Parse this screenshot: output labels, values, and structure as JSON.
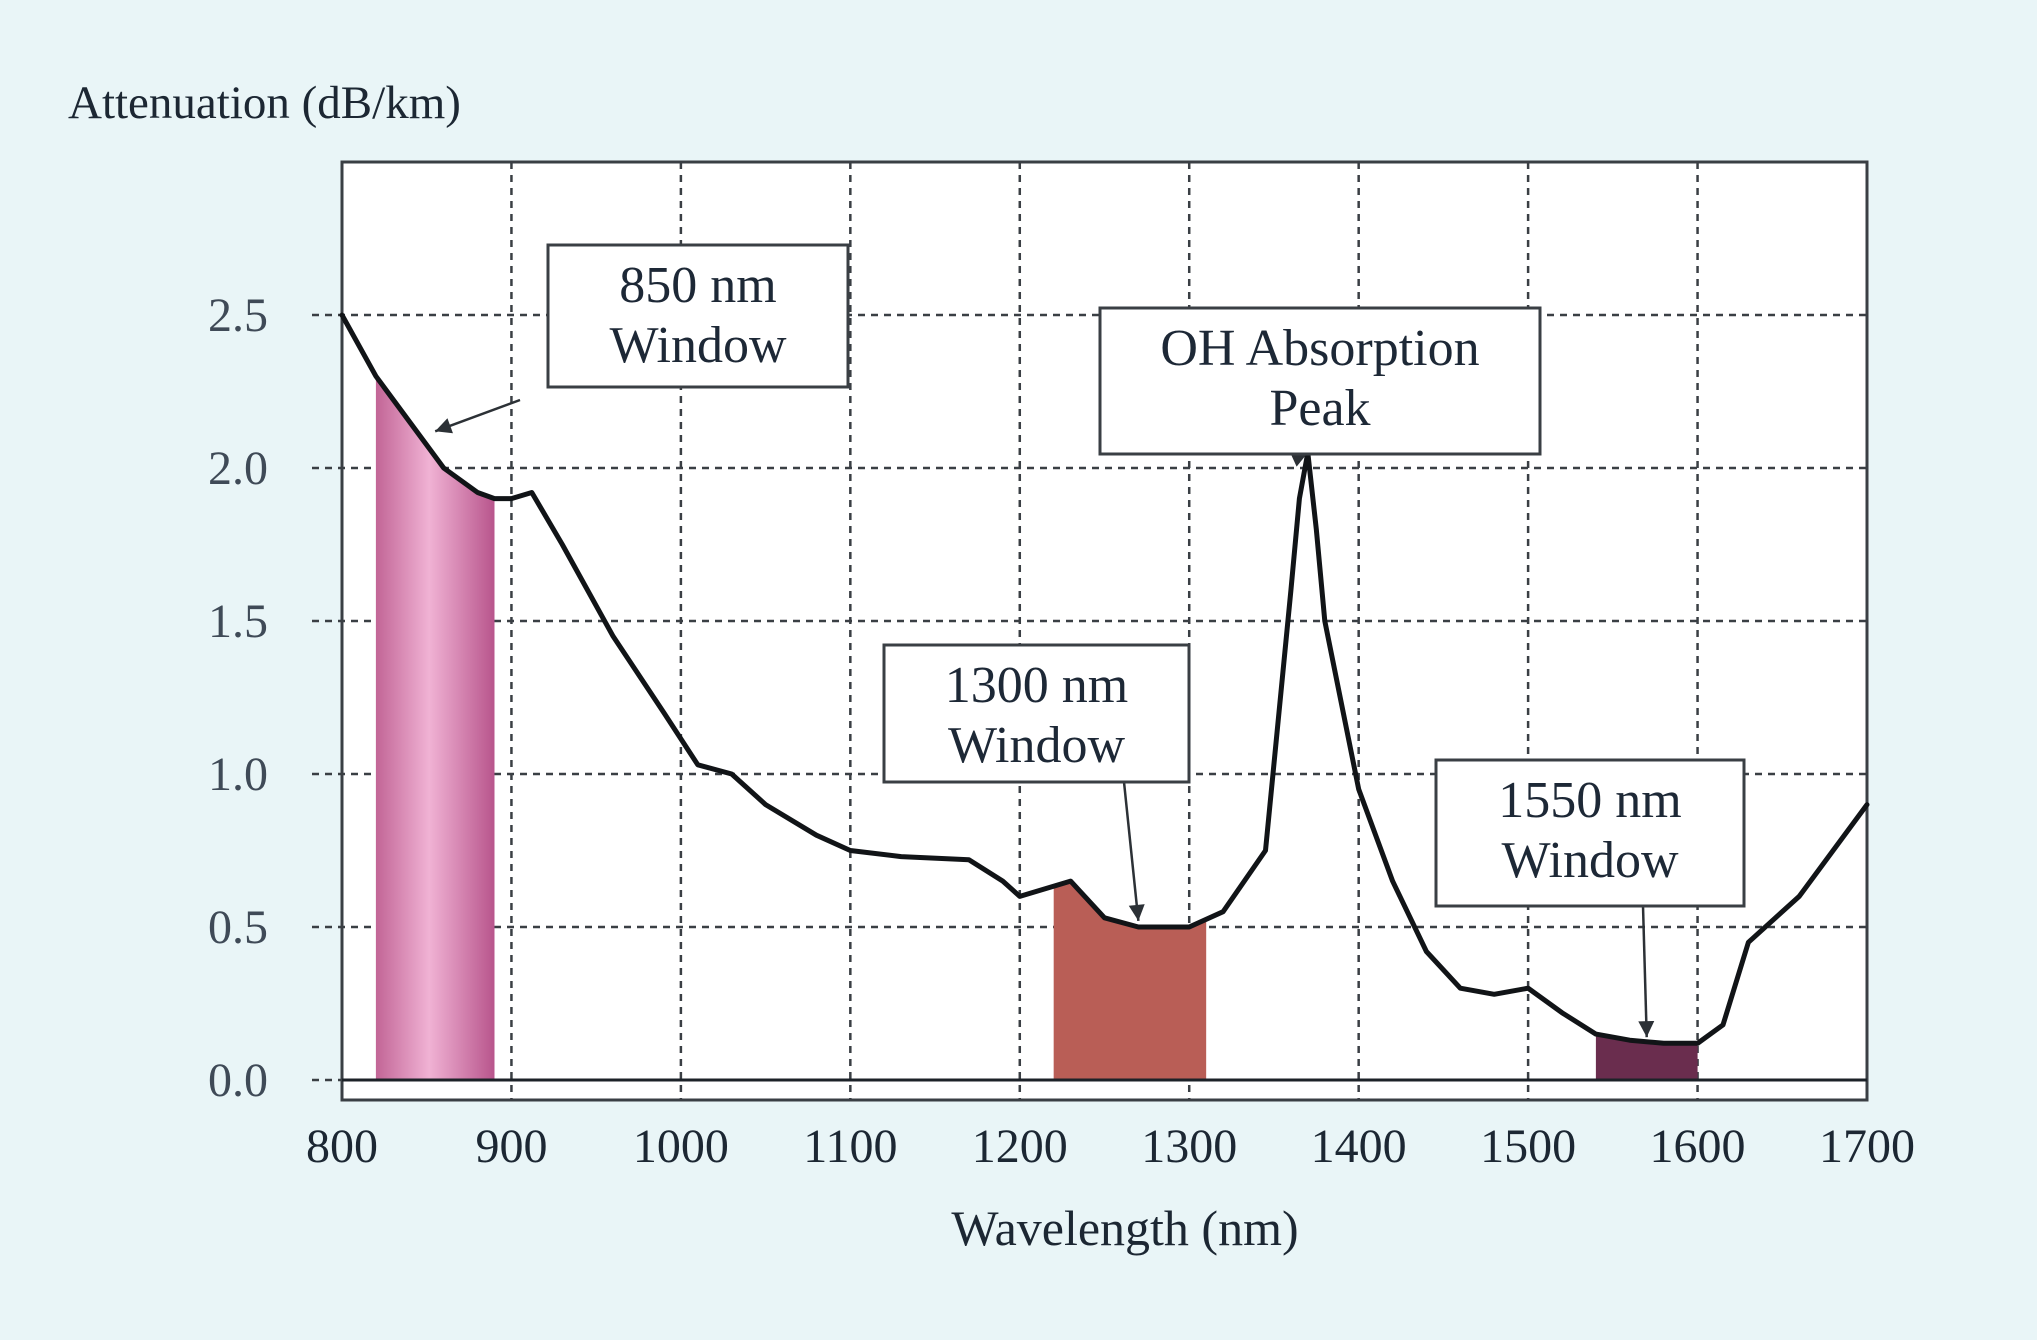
{
  "chart_data": {
    "type": "line",
    "title": "",
    "ylabel": "Attenuation (dB/km)",
    "xlabel": "Wavelength (nm)",
    "xlim": [
      800,
      1700
    ],
    "ylim": [
      0.0,
      2.5
    ],
    "xticks": [
      800,
      900,
      1000,
      1100,
      1200,
      1300,
      1400,
      1500,
      1600,
      1700
    ],
    "yticks": [
      0.0,
      0.5,
      1.0,
      1.5,
      2.0,
      2.5
    ],
    "ytick_labels": [
      "0.0",
      "0.5",
      "1.0",
      "1.5",
      "2.0",
      "2.5"
    ],
    "grid": true,
    "series": [
      {
        "x": [
          800,
          820,
          840,
          860,
          880,
          890,
          900,
          912,
          930,
          960,
          990,
          1010,
          1030,
          1050,
          1080,
          1100,
          1130,
          1170,
          1190,
          1200,
          1230,
          1250,
          1270,
          1300,
          1320,
          1345,
          1360,
          1365,
          1370,
          1375,
          1380,
          1400,
          1420,
          1440,
          1460,
          1480,
          1500,
          1520,
          1540,
          1560,
          1580,
          1600,
          1615,
          1630,
          1660,
          1700
        ],
        "y": [
          2.5,
          2.3,
          2.15,
          2.0,
          1.92,
          1.9,
          1.9,
          1.92,
          1.75,
          1.45,
          1.2,
          1.03,
          1.0,
          0.9,
          0.8,
          0.75,
          0.73,
          0.72,
          0.65,
          0.6,
          0.65,
          0.53,
          0.5,
          0.5,
          0.55,
          0.75,
          1.6,
          1.9,
          2.05,
          1.8,
          1.5,
          0.95,
          0.65,
          0.42,
          0.3,
          0.28,
          0.3,
          0.22,
          0.15,
          0.13,
          0.12,
          0.12,
          0.18,
          0.45,
          0.6,
          0.9
        ]
      }
    ],
    "windows": [
      {
        "x_start": 820,
        "x_end": 890,
        "color": "#c26596",
        "color_light": "#f0b2d4"
      },
      {
        "x_start": 1220,
        "x_end": 1310,
        "color": "#b95e56"
      },
      {
        "x_start": 1540,
        "x_end": 1600,
        "color": "#6a2d4e"
      }
    ],
    "annotations": [
      {
        "lines": [
          "850 nm",
          "Window"
        ],
        "arrow_to": [
          855,
          2.12
        ]
      },
      {
        "lines": [
          "OH Absorption",
          "Peak"
        ],
        "arrow_to": [
          1370,
          2.05
        ]
      },
      {
        "lines": [
          "1300 nm",
          "Window"
        ],
        "arrow_to": [
          1270,
          0.52
        ]
      },
      {
        "lines": [
          "1550 nm",
          "Window"
        ],
        "arrow_to": [
          1570,
          0.14
        ]
      }
    ]
  }
}
